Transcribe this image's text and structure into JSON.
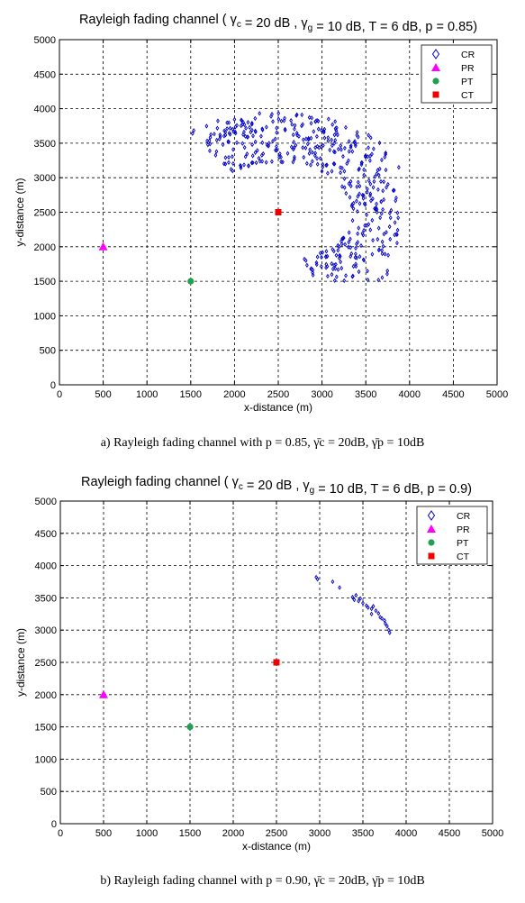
{
  "charts": [
    {
      "title": "Rayleigh fading channel ( γc = 20 dB , γg = 10 dB, T = 6 dB, p = 0.85)",
      "caption": "a) Rayleigh fading channel with  p = 0.85, γ̄c = 20dB, γ̄p = 10dB"
    },
    {
      "title": "Rayleigh fading channel ( γc = 20 dB , γg = 10 dB, T = 6 dB, p = 0.9)",
      "caption": "b) Rayleigh fading channel with  p = 0.90, γ̄c = 20dB, γ̄p = 10dB"
    }
  ],
  "chart_data": [
    {
      "type": "scatter",
      "title_parts": {
        "lead": "Rayleigh fading channel (  γ",
        "sub1": "c",
        "mid1": " = 20 dB , γ",
        "sub2": "g",
        "tail": " = 10 dB, T = 6 dB, p = 0.85)"
      },
      "xlabel": "x-distance (m)",
      "ylabel": "y-distance (m)",
      "xlim": [
        0,
        5000
      ],
      "ylim": [
        0,
        5000
      ],
      "x_ticks": [
        "0",
        "500",
        "1000",
        "1500",
        "2000",
        "2500",
        "3000",
        "3500",
        "4000",
        "4500",
        "5000"
      ],
      "y_ticks": [
        "0",
        "500",
        "1000",
        "1500",
        "2000",
        "2500",
        "3000",
        "3500",
        "4000",
        "4500",
        "5000"
      ],
      "grid": true,
      "legend_position": "top-right",
      "legend": [
        "CR",
        "PR",
        "PT",
        "CT"
      ],
      "cr_region": {
        "count": 480,
        "seed": 7,
        "inner_radius": 820,
        "outer_radius": 1650,
        "center": [
          2500,
          2500
        ],
        "angle_from_deg": -70,
        "angle_to_deg": 128,
        "extra_tail_from": [
          1650,
          3500
        ],
        "extra_tail_to": [
          2200,
          3800
        ]
      },
      "series": [
        {
          "name": "PR",
          "marker": "triangle",
          "color": "#ff00ff",
          "points": [
            [
              500,
              2000
            ]
          ]
        },
        {
          "name": "PT",
          "marker": "circle",
          "color": "#20a050",
          "points": [
            [
              1500,
              1500
            ]
          ]
        },
        {
          "name": "CT",
          "marker": "square",
          "color": "#ee0000",
          "points": [
            [
              2500,
              2500
            ]
          ]
        }
      ],
      "colors": {
        "cr": "#0000cc",
        "pr": "#ff00ff",
        "pt": "#20a050",
        "ct": "#ee0000",
        "grid": "#000000"
      }
    },
    {
      "type": "scatter",
      "title_parts": {
        "lead": "Rayleigh fading channel (  γ",
        "sub1": "c",
        "mid1": " = 20 dB , γ",
        "sub2": "g",
        "tail": " = 10 dB, T = 6 dB, p = 0.9)"
      },
      "xlabel": "x-distance (m)",
      "ylabel": "y-distance (m)",
      "xlim": [
        0,
        5000
      ],
      "ylim": [
        0,
        5000
      ],
      "x_ticks": [
        "0",
        "500",
        "1000",
        "1500",
        "2000",
        "2500",
        "3000",
        "3500",
        "4000",
        "4500",
        "5000"
      ],
      "y_ticks": [
        "0",
        "500",
        "1000",
        "1500",
        "2000",
        "2500",
        "3000",
        "3500",
        "4000",
        "4500",
        "5000"
      ],
      "grid": true,
      "legend_position": "top-right",
      "legend": [
        "CR",
        "PR",
        "PT",
        "CT"
      ],
      "cr_points": [
        [
          2960,
          3820
        ],
        [
          2975,
          3790
        ],
        [
          3150,
          3750
        ],
        [
          3230,
          3660
        ],
        [
          3380,
          3510
        ],
        [
          3400,
          3470
        ],
        [
          3420,
          3540
        ],
        [
          3450,
          3450
        ],
        [
          3470,
          3490
        ],
        [
          3500,
          3420
        ],
        [
          3560,
          3350
        ],
        [
          3600,
          3330
        ],
        [
          3620,
          3370
        ],
        [
          3650,
          3300
        ],
        [
          3680,
          3260
        ],
        [
          3700,
          3200
        ],
        [
          3720,
          3180
        ],
        [
          3750,
          3150
        ],
        [
          3760,
          3100
        ],
        [
          3780,
          3060
        ],
        [
          3800,
          3000
        ],
        [
          3810,
          2960
        ],
        [
          3600,
          3250
        ],
        [
          3540,
          3380
        ]
      ],
      "series": [
        {
          "name": "PR",
          "marker": "triangle",
          "color": "#ff00ff",
          "points": [
            [
              500,
              2000
            ]
          ]
        },
        {
          "name": "PT",
          "marker": "circle",
          "color": "#20a050",
          "points": [
            [
              1500,
              1500
            ]
          ]
        },
        {
          "name": "CT",
          "marker": "square",
          "color": "#ee0000",
          "points": [
            [
              2500,
              2500
            ]
          ]
        }
      ],
      "colors": {
        "cr": "#0000cc",
        "pr": "#ff00ff",
        "pt": "#20a050",
        "ct": "#ee0000",
        "grid": "#000000"
      }
    }
  ]
}
